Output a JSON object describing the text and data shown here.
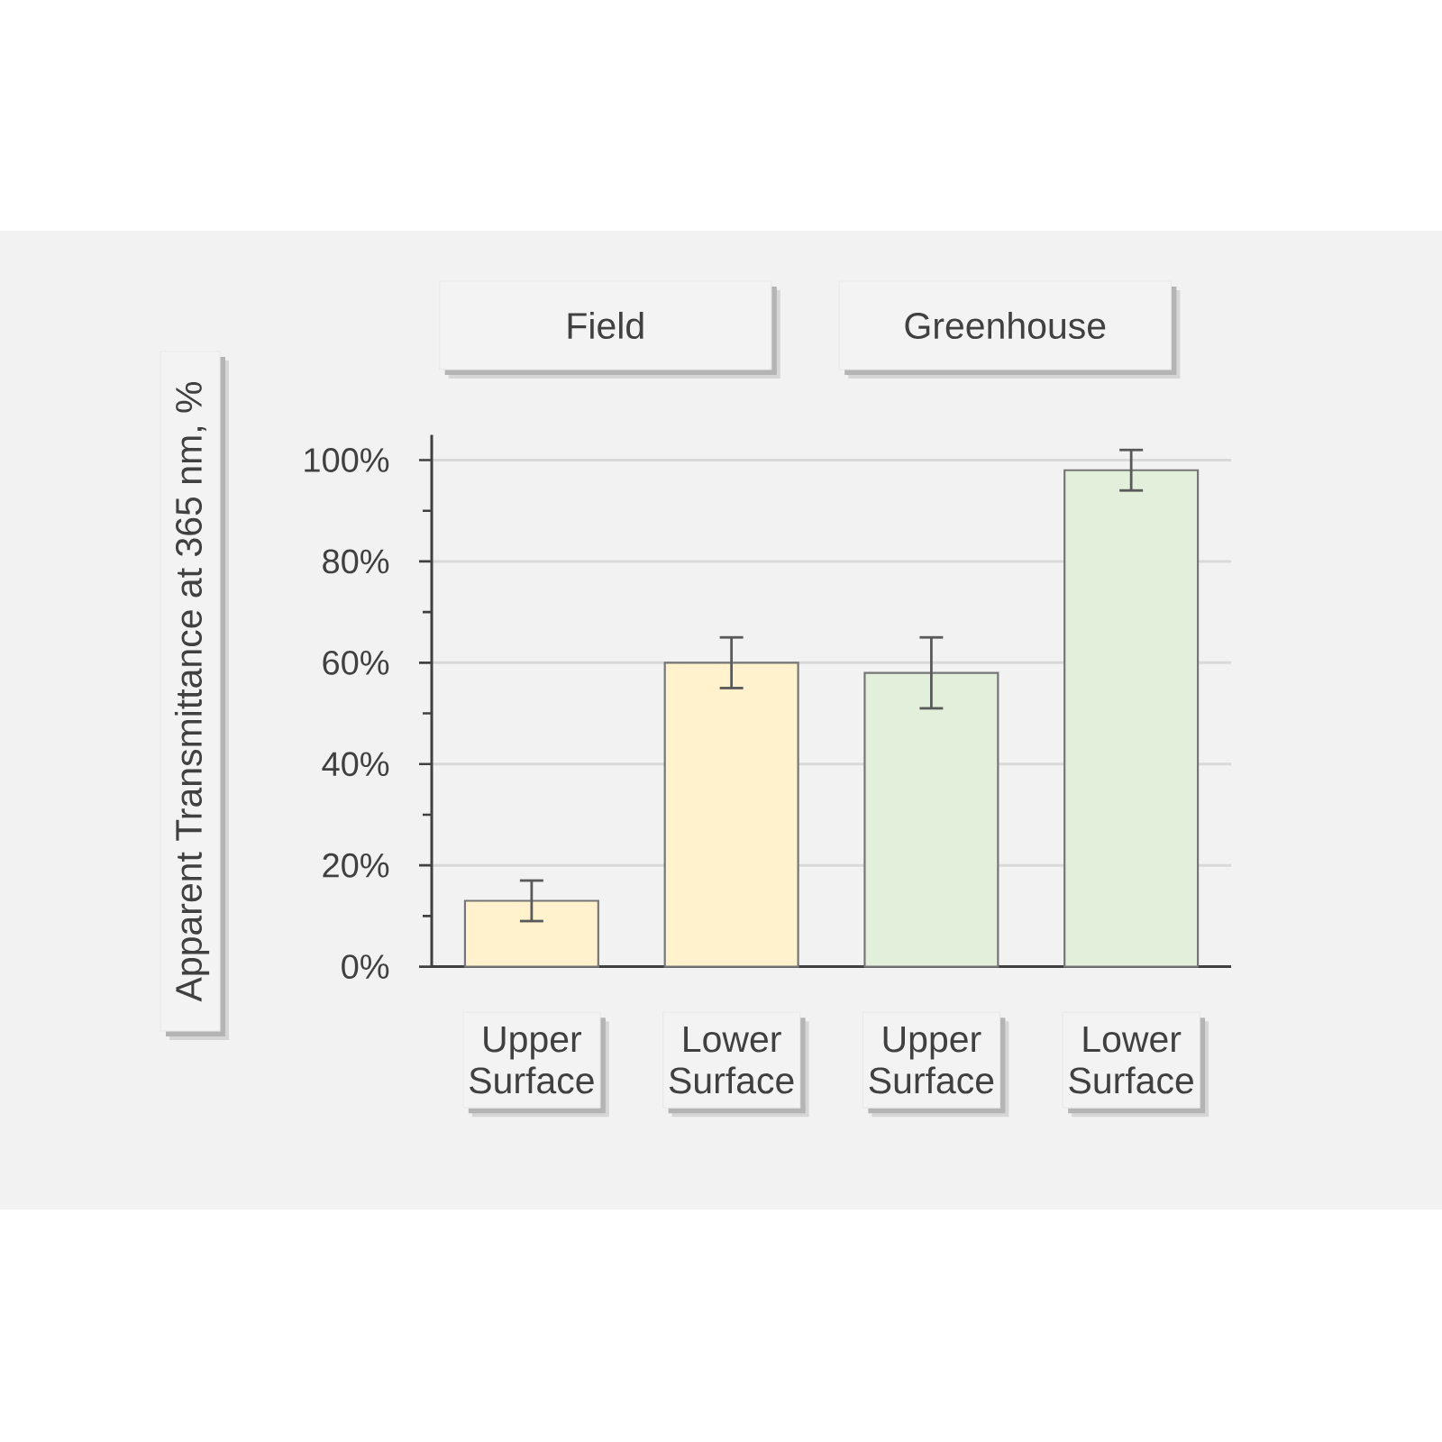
{
  "chart_data": {
    "type": "bar",
    "ylabel": "Apparent Transmittance at 365 nm, %",
    "annotations": [
      "Field",
      "Greenhouse"
    ],
    "categories": [
      "Upper Surface",
      "Lower Surface",
      "Upper Surface",
      "Lower Surface"
    ],
    "values": [
      13,
      60,
      58,
      98
    ],
    "colors": [
      "#fff2cc",
      "#fff2cc",
      "#e2efda",
      "#e2efda"
    ],
    "errors": [
      4,
      5,
      7,
      4
    ],
    "ylim": [
      0,
      105
    ],
    "yticks": [
      {
        "value": 0,
        "label": "0%"
      },
      {
        "value": 10,
        "label": null
      },
      {
        "value": 20,
        "label": "20%"
      },
      {
        "value": 30,
        "label": null
      },
      {
        "value": 40,
        "label": "40%"
      },
      {
        "value": 50,
        "label": null
      },
      {
        "value": 60,
        "label": "60%"
      },
      {
        "value": 70,
        "label": null
      },
      {
        "value": 80,
        "label": "80%"
      },
      {
        "value": 90,
        "label": null
      },
      {
        "value": 100,
        "label": "100%"
      }
    ],
    "grid": "y"
  }
}
